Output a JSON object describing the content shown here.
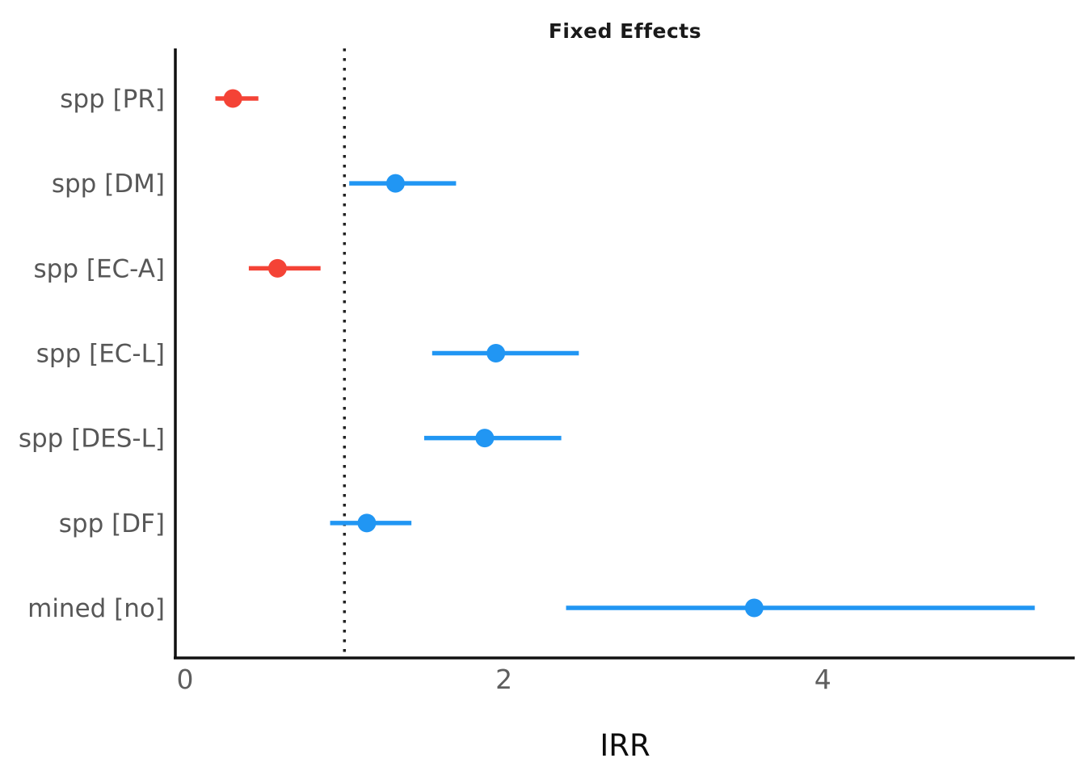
{
  "chart_data": {
    "type": "forest",
    "title": "Fixed Effects",
    "xlabel": "IRR",
    "x_ticks": [
      0,
      2,
      4
    ],
    "xlim": [
      -0.06,
      5.66
    ],
    "ylim_rows": 7,
    "reference_line": 1,
    "grid": false,
    "legend": "none",
    "colors": {
      "positive": "#2196F3",
      "negative": "#F44336",
      "axis": "#111111",
      "ref_line": "#222222",
      "tick_label": "#5e5e5e",
      "category_label": "#575757",
      "title": "#1a1a1a"
    },
    "rows": [
      {
        "label": "spp [PR]",
        "estimate": 0.3,
        "ci_low": 0.19,
        "ci_high": 0.46,
        "group": "negative"
      },
      {
        "label": "spp [DM]",
        "estimate": 1.32,
        "ci_low": 1.03,
        "ci_high": 1.7,
        "group": "positive"
      },
      {
        "label": "spp [EC-A]",
        "estimate": 0.58,
        "ci_low": 0.4,
        "ci_high": 0.85,
        "group": "negative"
      },
      {
        "label": "spp [EC-L]",
        "estimate": 1.95,
        "ci_low": 1.55,
        "ci_high": 2.47,
        "group": "positive"
      },
      {
        "label": "spp [DES-L]",
        "estimate": 1.88,
        "ci_low": 1.5,
        "ci_high": 2.36,
        "group": "positive"
      },
      {
        "label": "spp [DF]",
        "estimate": 1.14,
        "ci_low": 0.91,
        "ci_high": 1.42,
        "group": "positive"
      },
      {
        "label": "mined [no]",
        "estimate": 3.57,
        "ci_low": 2.39,
        "ci_high": 5.33,
        "group": "positive"
      }
    ]
  }
}
